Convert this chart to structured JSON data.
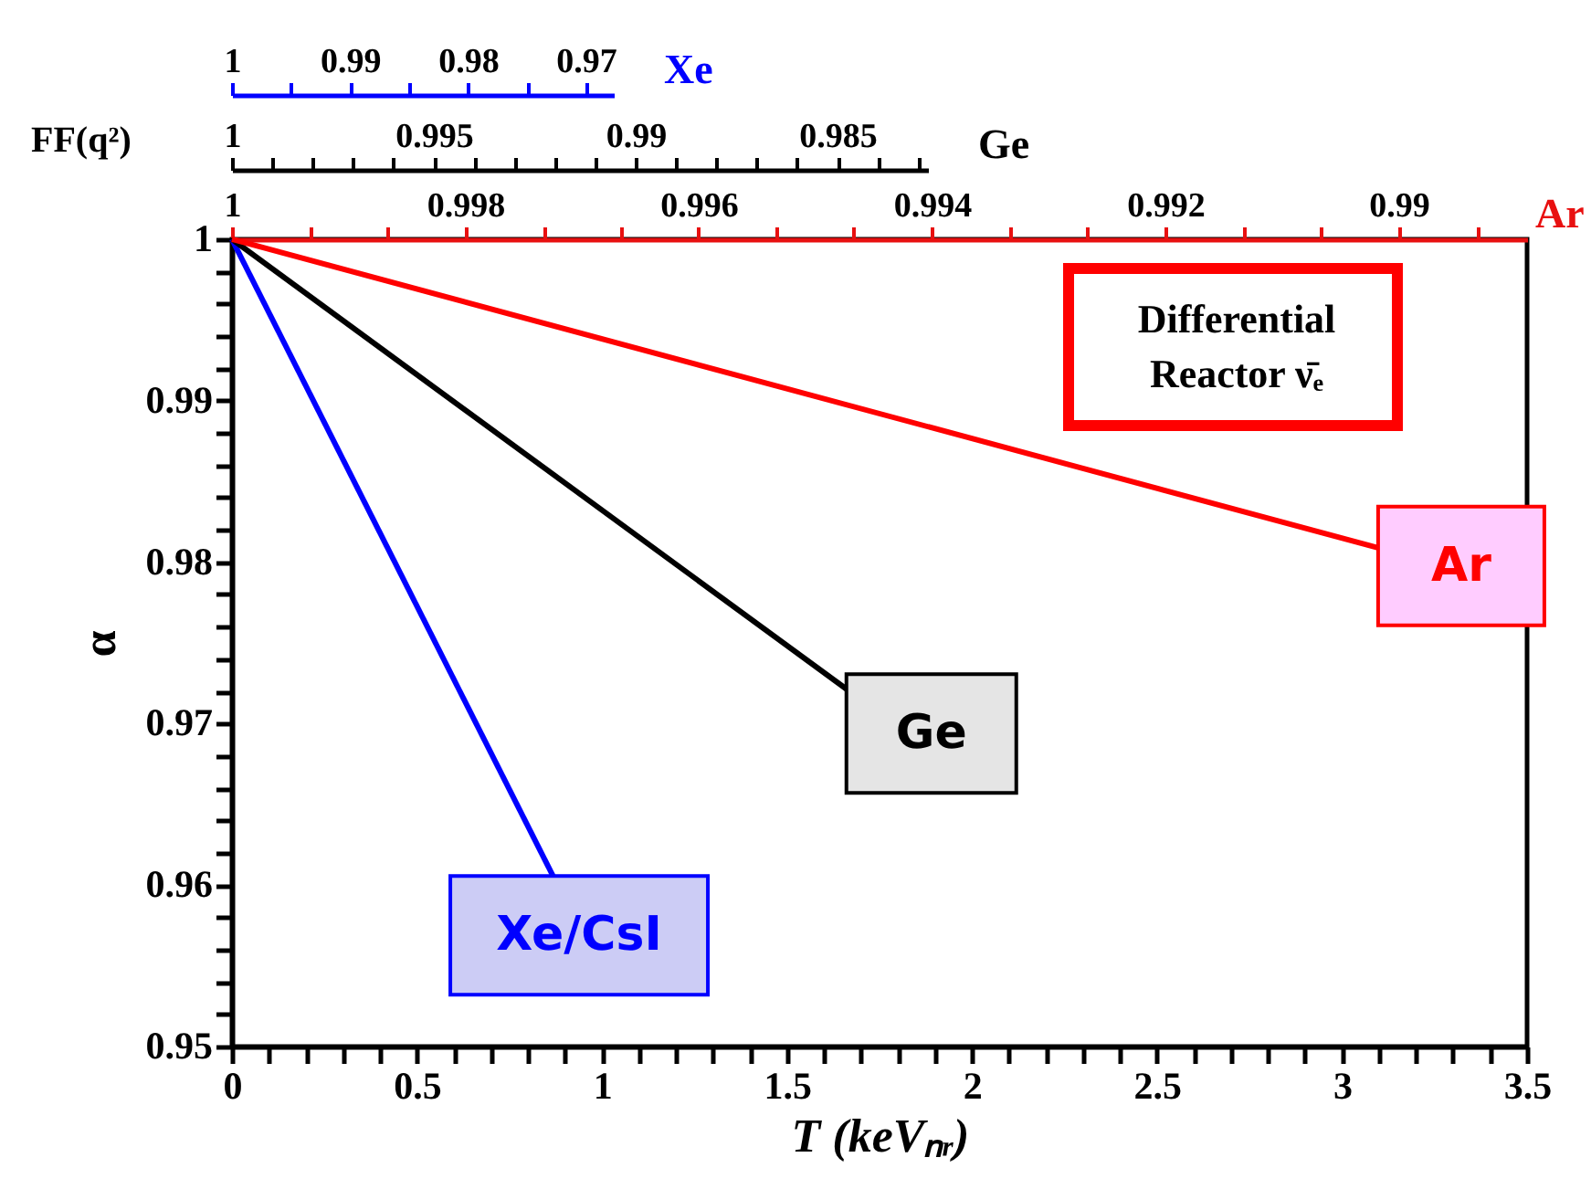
{
  "chart_data": {
    "type": "line",
    "xlabel": "T (keVₙᵣ)",
    "ylabel": "α",
    "series": [
      {
        "name": "Xe/CsI",
        "color": "#0000ff",
        "x": [
          0,
          0.869
        ],
        "values": [
          1,
          0.9605
        ]
      },
      {
        "name": "Ge",
        "color": "#000000",
        "x": [
          0,
          1.663
        ],
        "values": [
          1,
          0.9721
        ]
      },
      {
        "name": "Ar",
        "color": "#ff0000",
        "x": [
          0,
          3.095
        ],
        "values": [
          1,
          0.9809
        ]
      }
    ],
    "xlim": [
      0,
      3.5
    ],
    "xticks": [
      0,
      {
        "value": 0.1,
        "label": null
      },
      {
        "value": 0.2,
        "label": null
      },
      {
        "value": 0.3,
        "label": null
      },
      {
        "value": 0.4,
        "label": null
      },
      0.5,
      {
        "value": 0.6,
        "label": null
      },
      {
        "value": 0.7,
        "label": null
      },
      {
        "value": 0.8,
        "label": null
      },
      {
        "value": 0.9,
        "label": null
      },
      1,
      {
        "value": 1.1,
        "label": null
      },
      {
        "value": 1.2,
        "label": null
      },
      {
        "value": 1.3,
        "label": null
      },
      {
        "value": 1.4,
        "label": null
      },
      1.5,
      {
        "value": 1.6,
        "label": null
      },
      {
        "value": 1.7,
        "label": null
      },
      {
        "value": 1.8,
        "label": null
      },
      {
        "value": 1.9,
        "label": null
      },
      2,
      {
        "value": 2.1,
        "label": null
      },
      {
        "value": 2.2,
        "label": null
      },
      {
        "value": 2.3,
        "label": null
      },
      {
        "value": 2.4,
        "label": null
      },
      2.5,
      {
        "value": 2.6,
        "label": null
      },
      {
        "value": 2.7,
        "label": null
      },
      {
        "value": 2.8,
        "label": null
      },
      {
        "value": 2.9,
        "label": null
      },
      3,
      {
        "value": 3.1,
        "label": null
      },
      {
        "value": 3.2,
        "label": null
      },
      {
        "value": 3.3,
        "label": null
      },
      {
        "value": 3.4,
        "label": null
      },
      3.5
    ],
    "ylim": [
      0.95,
      1
    ],
    "yticks": [
      0.95,
      {
        "value": 0.952,
        "label": null
      },
      {
        "value": 0.954,
        "label": null
      },
      {
        "value": 0.956,
        "label": null
      },
      {
        "value": 0.958,
        "label": null
      },
      0.96,
      {
        "value": 0.962,
        "label": null
      },
      {
        "value": 0.964,
        "label": null
      },
      {
        "value": 0.966,
        "label": null
      },
      {
        "value": 0.968,
        "label": null
      },
      0.97,
      {
        "value": 0.972,
        "label": null
      },
      {
        "value": 0.974,
        "label": null
      },
      {
        "value": 0.976,
        "label": null
      },
      {
        "value": 0.978,
        "label": null
      },
      0.98,
      {
        "value": 0.982,
        "label": null
      },
      {
        "value": 0.984,
        "label": null
      },
      {
        "value": 0.986,
        "label": null
      },
      {
        "value": 0.988,
        "label": null
      },
      0.99,
      {
        "value": 0.992,
        "label": null
      },
      {
        "value": 0.994,
        "label": null
      },
      {
        "value": 0.996,
        "label": null
      },
      {
        "value": 0.998,
        "label": null
      },
      1
    ],
    "x2lim": [
      1,
      0.9889
    ],
    "x2label": "Ar",
    "x2ticks": [
      1,
      {
        "value": 0.99933,
        "label": null
      },
      {
        "value": 0.99867,
        "label": null
      },
      0.998,
      {
        "value": 0.99733,
        "label": null
      },
      {
        "value": 0.99667,
        "label": null
      },
      0.996,
      {
        "value": 0.99533,
        "label": null
      },
      {
        "value": 0.99467,
        "label": null
      },
      0.994,
      {
        "value": 0.99333,
        "label": null
      },
      {
        "value": 0.99267,
        "label": null
      },
      0.992,
      {
        "value": 0.99133,
        "label": null
      },
      {
        "value": 0.99067,
        "label": null
      },
      0.99,
      {
        "value": 0.98933,
        "label": null
      }
    ],
    "annotations": [
      "FF(q²)",
      "Differential Reactor ν̄ₑ",
      "Ge",
      "1",
      "0.995",
      "0.99",
      "0.985",
      "Xe",
      "1",
      "0.99",
      "0.98",
      "0.97"
    ],
    "grid": false,
    "legend": false,
    "marker": "none",
    "line_style": "solid"
  }
}
